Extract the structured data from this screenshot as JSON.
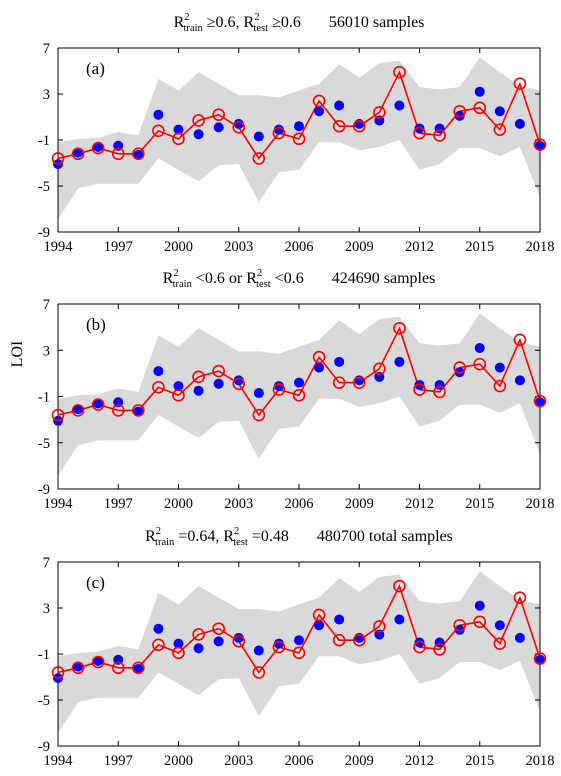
{
  "figure": {
    "ylabel": "LOI",
    "xticks": [
      1994,
      1997,
      2000,
      2003,
      2006,
      2009,
      2012,
      2015,
      2018
    ],
    "yticks": [
      -9,
      -5,
      -1,
      3,
      7
    ],
    "colors": {
      "observed": "#ff0000",
      "predicted": "#0000ff",
      "band": "#d9d9d9",
      "axis": "#000000"
    }
  },
  "chart_data": [
    {
      "type": "line",
      "panel_label": "(a)",
      "title": {
        "segments": [
          {
            "text": "R",
            "style": "normal"
          },
          {
            "text": "2",
            "style": "sup"
          },
          {
            "text": "train",
            "style": "sub"
          },
          {
            "text": " ≥0.6, ",
            "style": "normal"
          },
          {
            "text": "R",
            "style": "normal"
          },
          {
            "text": "2",
            "style": "sup"
          },
          {
            "text": "test",
            "style": "sub"
          },
          {
            "text": " ≥0.6",
            "style": "normal"
          },
          {
            "text": "56010  samples",
            "style": "gap"
          }
        ]
      },
      "xlabel": "",
      "ylabel": "LOI",
      "xlim": [
        1994,
        2018
      ],
      "ylim": [
        -9,
        7
      ],
      "grid": false,
      "x": [
        1994,
        1995,
        1996,
        1997,
        1998,
        1999,
        2000,
        2001,
        2002,
        2003,
        2004,
        2005,
        2006,
        2007,
        2008,
        2009,
        2010,
        2011,
        2012,
        2013,
        2014,
        2015,
        2016,
        2017,
        2018
      ],
      "series": [
        {
          "style": "red-line-open-circles",
          "values": [
            -2.6,
            -2.2,
            -1.7,
            -2.2,
            -2.2,
            -0.2,
            -0.9,
            0.7,
            1.2,
            0.1,
            -2.6,
            -0.4,
            -0.9,
            2.4,
            0.2,
            0.2,
            1.4,
            4.9,
            -0.4,
            -0.6,
            1.5,
            1.8,
            -0.1,
            3.9,
            -1.4
          ]
        },
        {
          "style": "blue-filled-dots",
          "values": [
            -3.1,
            -2.1,
            -1.6,
            -1.5,
            -2.3,
            1.2,
            -0.1,
            -0.5,
            0.1,
            0.4,
            -0.7,
            -0.1,
            0.2,
            1.5,
            2.0,
            0.4,
            0.7,
            2.0,
            0.0,
            0.0,
            1.1,
            3.2,
            1.5,
            0.4,
            -1.5
          ]
        },
        {
          "style": "gray-band",
          "lower": [
            -7.9,
            -5.2,
            -4.8,
            -4.8,
            -4.8,
            -2.6,
            -3.6,
            -4.6,
            -3.2,
            -3.1,
            -6.4,
            -3.8,
            -3.6,
            -1.2,
            -1.2,
            -1.9,
            -1.6,
            -1.0,
            -3.6,
            -3.1,
            -1.7,
            -1.7,
            -2.4,
            -1.6,
            -6.0
          ],
          "upper": [
            -1.2,
            -0.9,
            -0.8,
            -0.3,
            -0.6,
            4.3,
            3.3,
            4.9,
            3.9,
            2.9,
            2.9,
            2.7,
            3.3,
            3.9,
            5.6,
            4.4,
            5.7,
            5.9,
            3.6,
            3.4,
            3.6,
            6.2,
            4.9,
            3.7,
            3.3
          ]
        }
      ]
    },
    {
      "type": "line",
      "panel_label": "(b)",
      "title": {
        "segments": [
          {
            "text": "R",
            "style": "normal"
          },
          {
            "text": "2",
            "style": "sup"
          },
          {
            "text": "train",
            "style": "sub"
          },
          {
            "text": " <0.6 or ",
            "style": "normal"
          },
          {
            "text": "R",
            "style": "normal"
          },
          {
            "text": "2",
            "style": "sup"
          },
          {
            "text": "test",
            "style": "sub"
          },
          {
            "text": " <0.6",
            "style": "normal"
          },
          {
            "text": "424690  samples",
            "style": "gap"
          }
        ]
      },
      "xlabel": "",
      "ylabel": "LOI",
      "xlim": [
        1994,
        2018
      ],
      "ylim": [
        -9,
        7
      ],
      "grid": false,
      "x": [
        1994,
        1995,
        1996,
        1997,
        1998,
        1999,
        2000,
        2001,
        2002,
        2003,
        2004,
        2005,
        2006,
        2007,
        2008,
        2009,
        2010,
        2011,
        2012,
        2013,
        2014,
        2015,
        2016,
        2017,
        2018
      ],
      "series": [
        {
          "style": "red-line-open-circles",
          "values": [
            -2.6,
            -2.2,
            -1.7,
            -2.2,
            -2.2,
            -0.2,
            -0.9,
            0.7,
            1.2,
            0.1,
            -2.6,
            -0.4,
            -0.9,
            2.4,
            0.2,
            0.2,
            1.4,
            4.9,
            -0.4,
            -0.6,
            1.5,
            1.8,
            -0.1,
            3.9,
            -1.4
          ]
        },
        {
          "style": "blue-filled-dots",
          "values": [
            -3.1,
            -2.1,
            -1.6,
            -1.5,
            -2.3,
            1.2,
            -0.1,
            -0.5,
            0.1,
            0.4,
            -0.7,
            -0.1,
            0.2,
            1.5,
            2.0,
            0.4,
            0.7,
            2.0,
            0.0,
            0.0,
            1.1,
            3.2,
            1.5,
            0.4,
            -1.5
          ]
        },
        {
          "style": "gray-band",
          "lower": [
            -7.9,
            -5.2,
            -4.8,
            -4.8,
            -4.8,
            -2.6,
            -3.6,
            -4.6,
            -3.2,
            -3.1,
            -6.4,
            -3.8,
            -3.6,
            -1.2,
            -1.2,
            -1.9,
            -1.6,
            -1.0,
            -3.6,
            -3.1,
            -1.7,
            -1.7,
            -2.4,
            -1.6,
            -6.0
          ],
          "upper": [
            -1.2,
            -0.9,
            -0.8,
            -0.3,
            -0.6,
            4.3,
            3.3,
            4.9,
            3.9,
            2.9,
            2.9,
            2.7,
            3.3,
            3.9,
            5.6,
            4.4,
            5.7,
            5.9,
            3.6,
            3.4,
            3.6,
            6.2,
            4.9,
            3.7,
            3.3
          ]
        }
      ]
    },
    {
      "type": "line",
      "panel_label": "(c)",
      "title": {
        "segments": [
          {
            "text": "R",
            "style": "normal"
          },
          {
            "text": "2",
            "style": "sup"
          },
          {
            "text": "train",
            "style": "sub"
          },
          {
            "text": " =0.64, ",
            "style": "normal"
          },
          {
            "text": "R",
            "style": "normal"
          },
          {
            "text": "2",
            "style": "sup"
          },
          {
            "text": "test",
            "style": "sub"
          },
          {
            "text": " =0.48",
            "style": "normal"
          },
          {
            "text": "480700  total samples",
            "style": "gap"
          }
        ]
      },
      "xlabel": "",
      "ylabel": "LOI",
      "xlim": [
        1994,
        2018
      ],
      "ylim": [
        -9,
        7
      ],
      "grid": false,
      "x": [
        1994,
        1995,
        1996,
        1997,
        1998,
        1999,
        2000,
        2001,
        2002,
        2003,
        2004,
        2005,
        2006,
        2007,
        2008,
        2009,
        2010,
        2011,
        2012,
        2013,
        2014,
        2015,
        2016,
        2017,
        2018
      ],
      "series": [
        {
          "style": "red-line-open-circles",
          "values": [
            -2.6,
            -2.2,
            -1.7,
            -2.2,
            -2.2,
            -0.2,
            -0.9,
            0.7,
            1.2,
            0.1,
            -2.6,
            -0.4,
            -0.9,
            2.4,
            0.2,
            0.2,
            1.4,
            4.9,
            -0.4,
            -0.6,
            1.5,
            1.8,
            -0.1,
            3.9,
            -1.4
          ]
        },
        {
          "style": "blue-filled-dots",
          "values": [
            -3.1,
            -2.1,
            -1.6,
            -1.5,
            -2.3,
            1.2,
            -0.1,
            -0.5,
            0.1,
            0.4,
            -0.7,
            -0.1,
            0.2,
            1.5,
            2.0,
            0.4,
            0.7,
            2.0,
            0.0,
            0.0,
            1.1,
            3.2,
            1.5,
            0.4,
            -1.5
          ]
        },
        {
          "style": "gray-band",
          "lower": [
            -7.9,
            -5.2,
            -4.8,
            -4.8,
            -4.8,
            -2.6,
            -3.6,
            -4.6,
            -3.2,
            -3.1,
            -6.4,
            -3.8,
            -3.6,
            -1.2,
            -1.2,
            -1.9,
            -1.6,
            -1.0,
            -3.6,
            -3.1,
            -1.7,
            -1.7,
            -2.4,
            -1.6,
            -6.0
          ],
          "upper": [
            -1.2,
            -0.9,
            -0.8,
            -0.3,
            -0.6,
            4.3,
            3.3,
            4.9,
            3.9,
            2.9,
            2.9,
            2.7,
            3.3,
            3.9,
            5.6,
            4.4,
            5.7,
            5.9,
            3.6,
            3.4,
            3.6,
            6.2,
            4.9,
            3.7,
            3.3
          ]
        }
      ]
    }
  ]
}
